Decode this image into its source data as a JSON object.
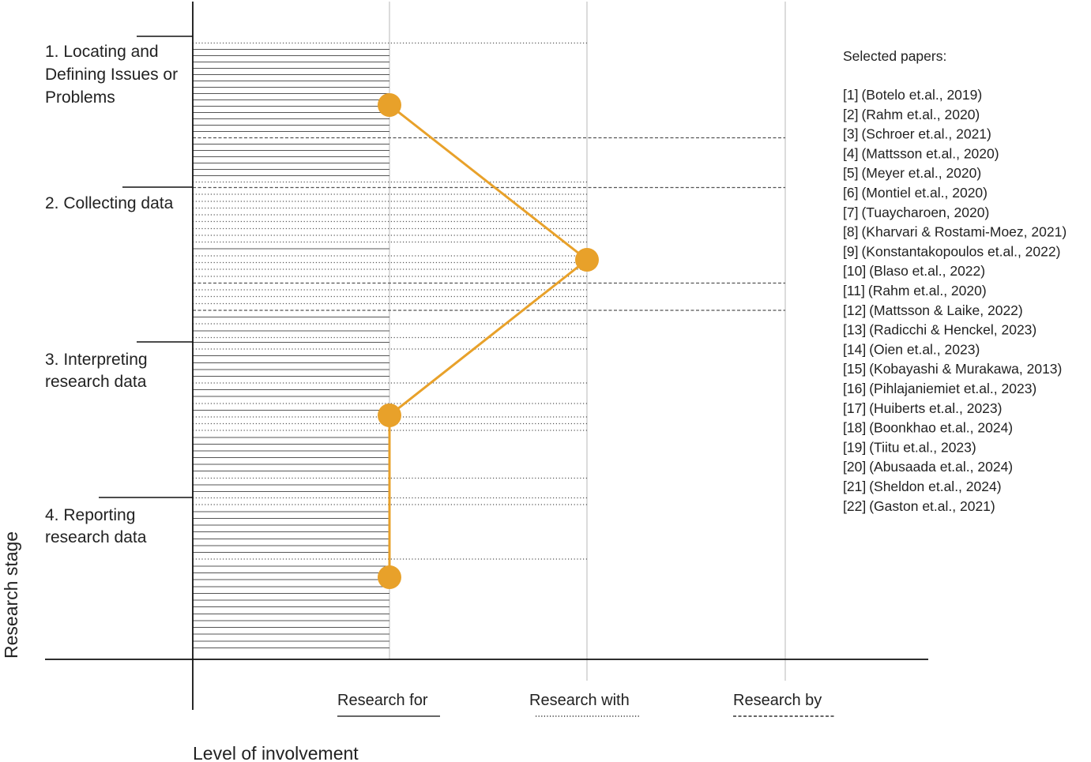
{
  "axis_titles": {
    "y": "Research stage",
    "x": "Level of involvement"
  },
  "stages": [
    {
      "lines": [
        "1. Locating and",
        "Defining Issues or",
        "Problems"
      ]
    },
    {
      "lines": [
        "2. Collecting data"
      ]
    },
    {
      "lines": [
        "3. Interpreting",
        "research data"
      ]
    },
    {
      "lines": [
        "4. Reporting",
        "research data"
      ]
    }
  ],
  "levels": [
    {
      "label": "Research for",
      "style": "solid"
    },
    {
      "label": "Research with",
      "style": "dotted"
    },
    {
      "label": "Research by",
      "style": "dashed"
    }
  ],
  "involvement_path": [
    {
      "stage": "1. Locating and Defining Issues or Problems",
      "level": "Research for"
    },
    {
      "stage": "2. Collecting data",
      "level": "Research with"
    },
    {
      "stage": "3. Interpreting research data",
      "level": "Research for"
    },
    {
      "stage": "4. Reporting research data",
      "level": "Research for"
    }
  ],
  "colors": {
    "accent": "#E8A12A",
    "axis": "#111111",
    "grid": "#c8c8c8",
    "lines": "#555555"
  },
  "papers": {
    "heading": "Selected papers:",
    "items": [
      {
        "n": "[1]",
        "label": "(Botelo et.al., 2019)"
      },
      {
        "n": "[2]",
        "label": "(Rahm et.al., 2020)"
      },
      {
        "n": "[3]",
        "label": "(Schroer et.al., 2021)"
      },
      {
        "n": "[4]",
        "label": "(Mattsson et.al., 2020)"
      },
      {
        "n": "[5]",
        "label": "(Meyer et.al., 2020)"
      },
      {
        "n": "[6]",
        "label": "(Montiel et.al., 2020)"
      },
      {
        "n": "[7]",
        "label": "(Tuaycharoen, 2020)"
      },
      {
        "n": "[8]",
        "label": "(Kharvari & Rostami-Moez, 2021)"
      },
      {
        "n": "[9]",
        "label": "(Konstantakopoulos et.al., 2022)"
      },
      {
        "n": "[10]",
        "label": "(Blaso et.al., 2022)"
      },
      {
        "n": "[11]",
        "label": "(Rahm et.al., 2020)"
      },
      {
        "n": "[12]",
        "label": "(Mattsson & Laike, 2022)"
      },
      {
        "n": "[13]",
        "label": "(Radicchi & Henckel, 2023)"
      },
      {
        "n": "[14]",
        "label": "(Oien et.al., 2023)"
      },
      {
        "n": "[15]",
        "label": "(Kobayashi & Murakawa, 2013)"
      },
      {
        "n": "[16]",
        "label": "(Pihlajaniemiet et.al., 2023)"
      },
      {
        "n": "[17]",
        "label": "(Huiberts et.al., 2023)"
      },
      {
        "n": "[18]",
        "label": "(Boonkhao et.al., 2024)"
      },
      {
        "n": "[19]",
        "label": "(Tiitu et.al., 2023)"
      },
      {
        "n": "[20]",
        "label": "(Abusaada et.al., 2024)"
      },
      {
        "n": "[21]",
        "label": "(Sheldon et.al., 2024)"
      },
      {
        "n": "[22]",
        "label": "(Gaston et.al., 2021)"
      }
    ]
  }
}
